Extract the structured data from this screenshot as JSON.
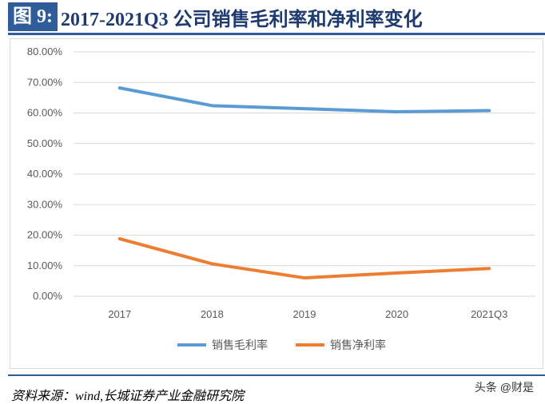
{
  "header": {
    "figure_label": "图 9:",
    "title": "2017-2021Q3 公司销售毛利率和净利率变化"
  },
  "chart_data": {
    "type": "line",
    "categories": [
      "2017",
      "2018",
      "2019",
      "2020",
      "2021Q3"
    ],
    "series": [
      {
        "name": "销售毛利率",
        "values": [
          68.2,
          62.4,
          61.4,
          60.4,
          60.8
        ],
        "color": "#5b9bd5"
      },
      {
        "name": "销售净利率",
        "values": [
          18.8,
          10.6,
          6.0,
          7.6,
          9.1
        ],
        "color": "#ed7d31"
      }
    ],
    "ylim": [
      0,
      80
    ],
    "yticks": [
      "0.00%",
      "10.00%",
      "20.00%",
      "30.00%",
      "40.00%",
      "50.00%",
      "60.00%",
      "70.00%",
      "80.00%"
    ],
    "grid": true,
    "legend": "bottom"
  },
  "footer": {
    "source": "资料来源：wind,长城证券产业金融研究院",
    "watermark": "头条 @财是"
  }
}
